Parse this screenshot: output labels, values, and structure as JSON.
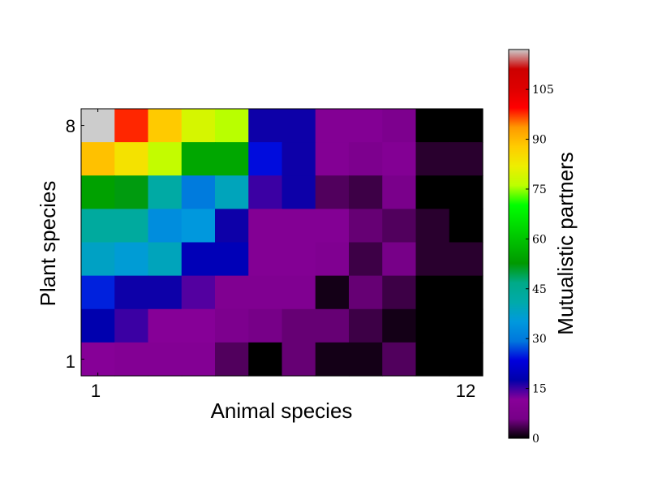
{
  "chart_data": {
    "type": "heatmap",
    "xlabel": "Animal species",
    "ylabel": "Plant species",
    "x_tick_labels": [
      "1",
      "12"
    ],
    "y_tick_labels": [
      "8",
      "1"
    ],
    "colorbar": {
      "label": "Mutualistic partners",
      "colormap": "nipy_spectral",
      "range": [
        0,
        117
      ],
      "ticks": [
        "0",
        "15",
        "30",
        "45",
        "60",
        "75",
        "90",
        "105"
      ],
      "tick_values": [
        0,
        15,
        30,
        45,
        60,
        75,
        90,
        105
      ]
    },
    "rows_top_to_bottom": [
      "8",
      "7",
      "6",
      "5",
      "4",
      "3",
      "2",
      "1"
    ],
    "columns": [
      "1",
      "2",
      "3",
      "4",
      "5",
      "6",
      "7",
      "8",
      "9",
      "10",
      "11",
      "12"
    ],
    "matrix": [
      [
        117,
        98,
        88,
        79,
        76,
        17,
        17,
        10,
        10,
        8,
        0,
        0
      ],
      [
        89,
        84,
        77,
        55,
        55,
        24,
        17,
        10,
        8,
        10,
        2,
        2
      ],
      [
        54,
        52,
        42,
        30,
        39,
        15,
        17,
        4,
        3,
        7,
        0,
        0
      ],
      [
        43,
        43,
        33,
        35,
        17,
        10,
        10,
        10,
        5,
        4,
        2,
        0
      ],
      [
        38,
        36,
        39,
        19,
        19,
        10,
        10,
        9,
        3,
        6,
        2,
        2
      ],
      [
        25,
        17,
        17,
        14,
        9,
        9,
        9,
        1,
        5,
        3,
        0,
        0
      ],
      [
        18,
        15,
        11,
        11,
        8,
        6,
        5,
        5,
        3,
        1,
        0,
        0
      ],
      [
        11,
        10,
        10,
        10,
        4,
        0,
        5,
        1,
        1,
        4,
        0,
        0
      ]
    ]
  }
}
